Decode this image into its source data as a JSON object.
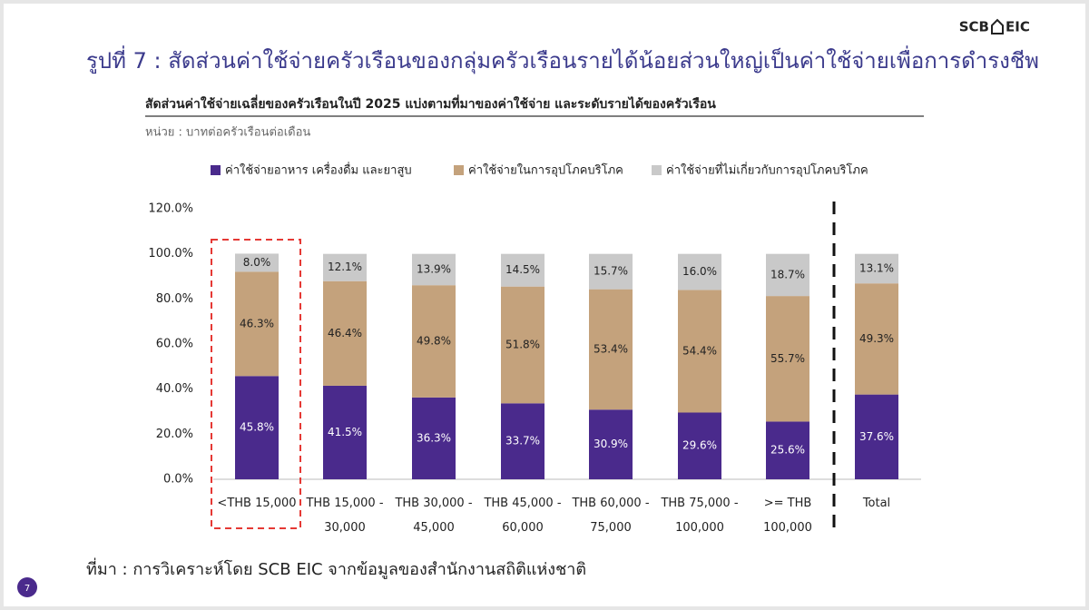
{
  "logo": {
    "left": "SCB",
    "right": "EIC"
  },
  "page_number": "7",
  "source": "ที่มา : การวิเคราะห์โดย SCB EIC จากข้อมูลของสำนักงานสถิติแห่งชาติ",
  "chart_data": {
    "type": "stacked_bar",
    "title": "รูปที่ 7 : สัดส่วนค่าใช้จ่ายครัวเรือนของกลุ่มครัวเรือนรายได้น้อยส่วนใหญ่เป็นค่าใช้จ่ายเพื่อการดำรงชีพ",
    "subtitle": "สัดส่วนค่าใช้จ่ายเฉลี่ยของครัวเรือนในปี 2025 แบ่งตามที่มาของค่าใช้จ่าย และระดับรายได้ของครัวเรือน",
    "unit": "หน่วย : บาทต่อครัวเรือนต่อเดือน",
    "categories": [
      "<THB 15,000",
      "THB 15,000 - 30,000",
      "THB 30,000 - 45,000",
      "THB 45,000 - 60,000",
      "THB 60,000 - 75,000",
      "THB 75,000 - 100,000",
      ">= THB 100,000",
      "Total"
    ],
    "series": [
      {
        "name": "ค่าใช้จ่ายอาหาร เครื่องดื่ม และยาสูบ",
        "color": "#4a2a8c",
        "values": [
          45.8,
          41.5,
          36.3,
          33.7,
          30.9,
          29.6,
          25.6,
          37.6
        ],
        "value_labels": [
          "45.8%",
          "41.5%",
          "36.3%",
          "33.7%",
          "30.9%",
          "29.6%",
          "25.6%",
          "37.6%"
        ]
      },
      {
        "name": "ค่าใช้จ่ายในการอุปโภคบริโภค",
        "color": "#c4a27c",
        "values": [
          46.3,
          46.4,
          49.8,
          51.8,
          53.4,
          54.4,
          55.7,
          49.3
        ],
        "value_labels": [
          "46.3%",
          "46.4%",
          "49.8%",
          "51.8%",
          "53.4%",
          "54.4%",
          "55.7%",
          "49.3%"
        ]
      },
      {
        "name": "ค่าใช้จ่ายที่ไม่เกี่ยวกับการอุปโภคบริโภค",
        "color": "#c9c9c9",
        "values": [
          8.0,
          12.1,
          13.9,
          14.5,
          15.7,
          16.0,
          18.7,
          13.1
        ],
        "value_labels": [
          "8.0%",
          "12.1%",
          "13.9%",
          "14.5%",
          "15.7%",
          "16.0%",
          "18.7%",
          "13.1%"
        ]
      }
    ],
    "ylim": [
      0,
      120
    ],
    "yticks": [
      {
        "value": 0,
        "label": "0.0%"
      },
      {
        "value": 20,
        "label": "20.0%"
      },
      {
        "value": 40,
        "label": "40.0%"
      },
      {
        "value": 60,
        "label": "60.0%"
      },
      {
        "value": 80,
        "label": "80.0%"
      },
      {
        "value": 100,
        "label": "100.0%"
      },
      {
        "value": 120,
        "label": "120.0%"
      }
    ],
    "grid": false
  }
}
